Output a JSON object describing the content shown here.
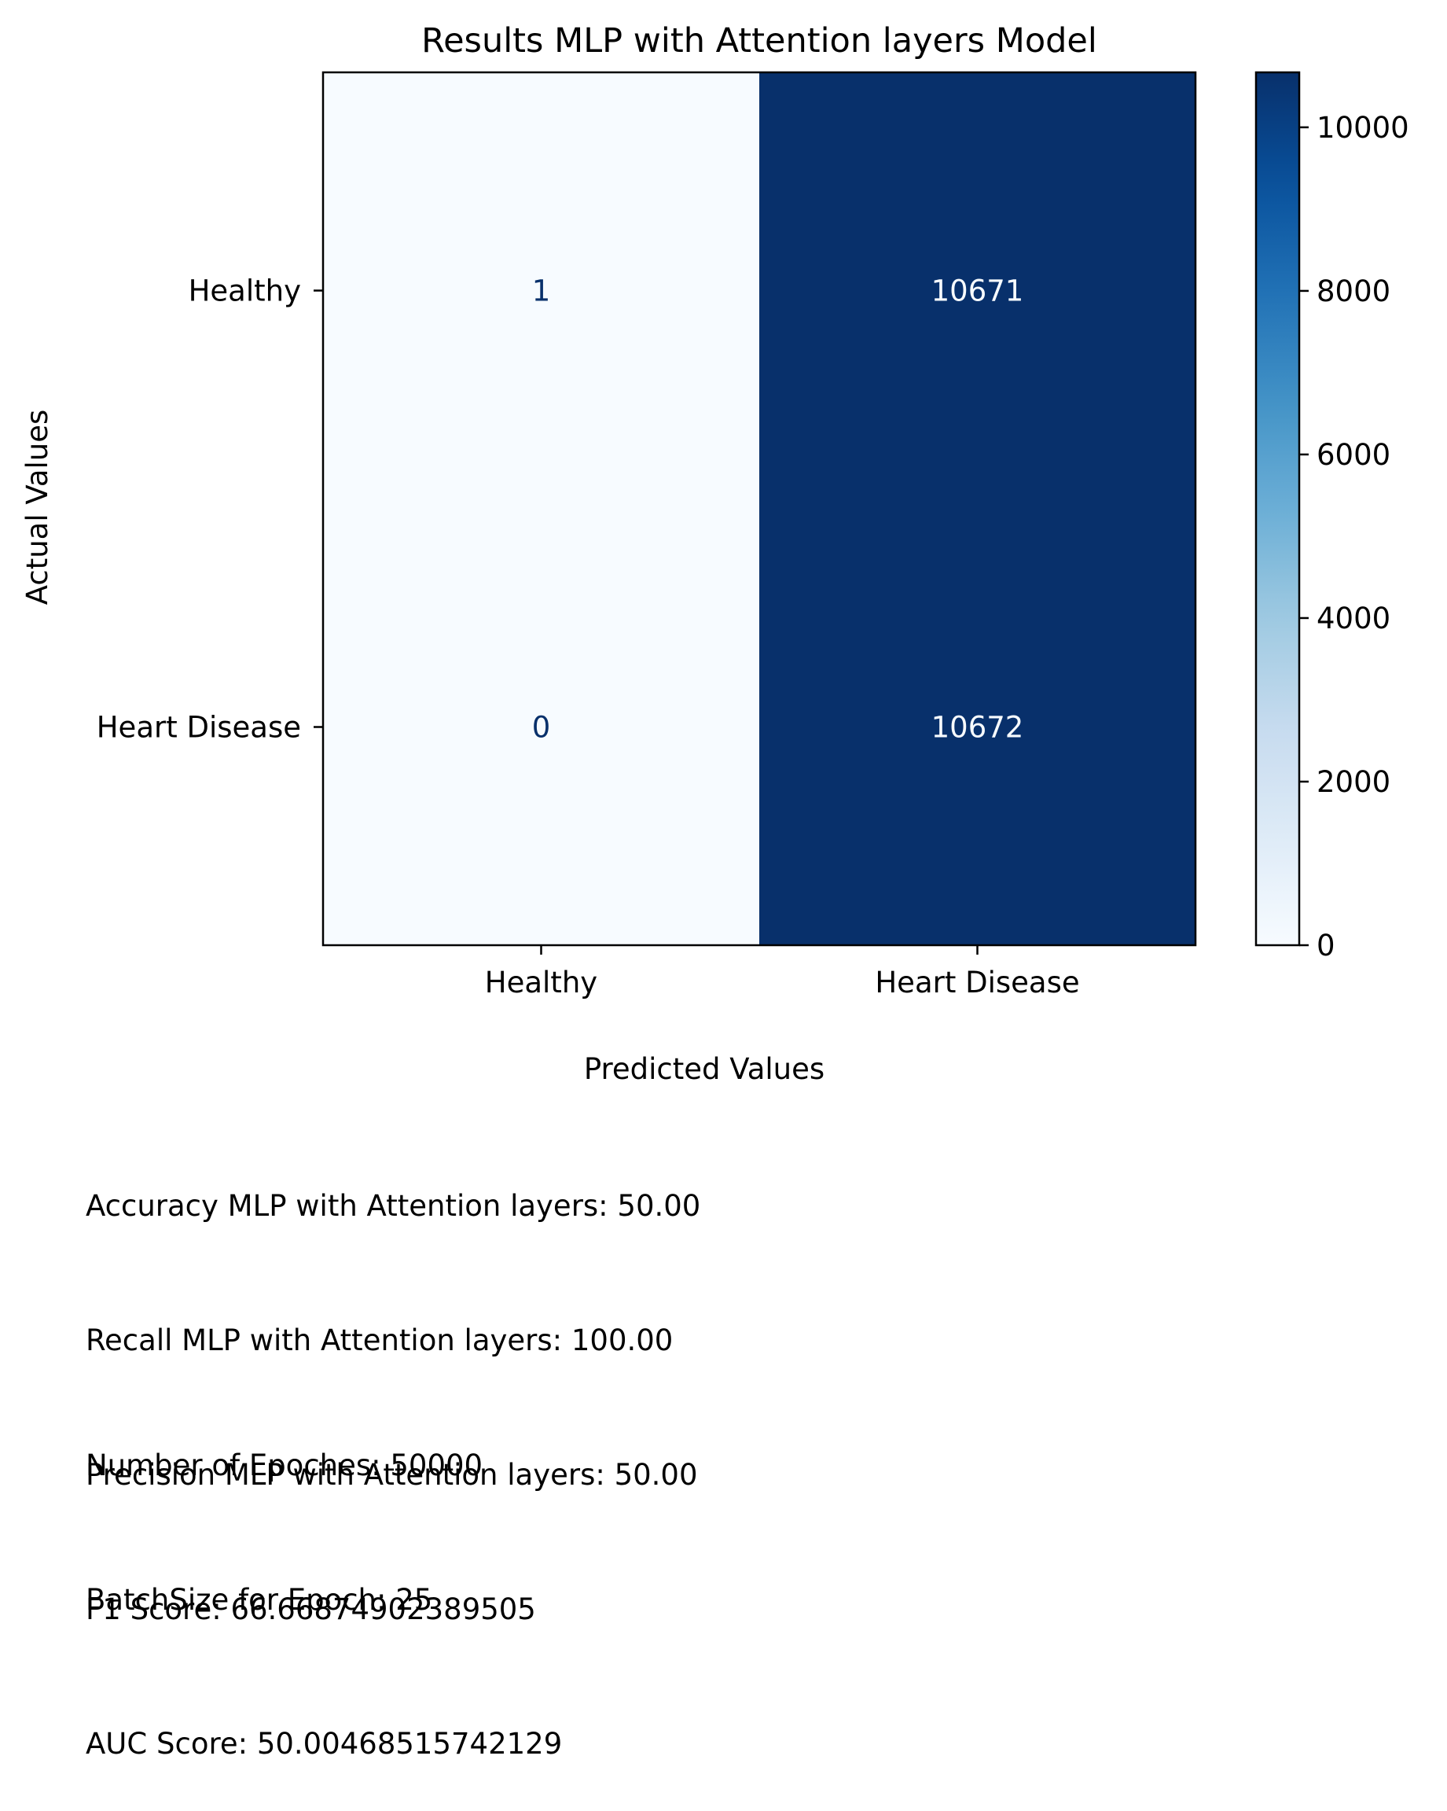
{
  "chart_data": {
    "type": "heatmap",
    "title": "Results MLP with Attention layers Model",
    "xlabel": "Predicted Values",
    "ylabel": "Actual Values",
    "x_categories": [
      "Healthy",
      "Heart Disease"
    ],
    "y_categories": [
      "Healthy",
      "Heart Disease"
    ],
    "values": [
      [
        1,
        10671
      ],
      [
        0,
        10672
      ]
    ],
    "colormap": "Blues",
    "colorbar": {
      "range": [
        0,
        10672
      ],
      "ticks": [
        0,
        2000,
        4000,
        6000,
        8000,
        10000
      ]
    },
    "colors": {
      "low": "#f7fbff",
      "high": "#08306b",
      "dark_text": "#08306b",
      "light_text": "#f7fbff"
    }
  },
  "metrics": [
    "Accuracy MLP with Attention layers: 50.00",
    "Recall MLP with Attention layers: 100.00",
    "Precision MLP with Attention layers: 50.00",
    "F1 Score: 66.66874902389505",
    "AUC Score: 50.00468515742129"
  ],
  "training": [
    "Number of Epoches: 50000",
    "BatchSize for Epoch: 25"
  ]
}
